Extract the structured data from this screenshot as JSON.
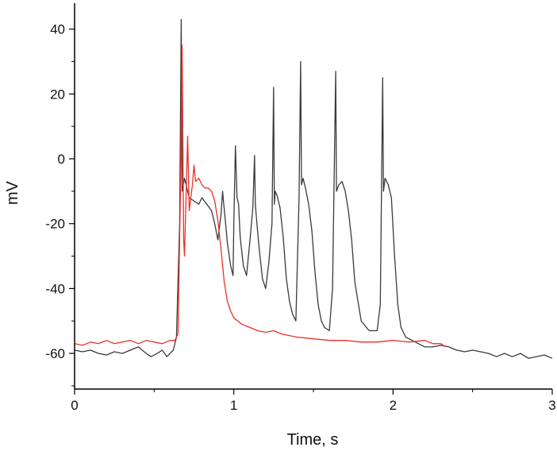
{
  "chart_data": {
    "type": "line",
    "title": "",
    "xlabel": "Time, s",
    "ylabel": "mV",
    "xlim": [
      0,
      3
    ],
    "ylim": [
      -71,
      48
    ],
    "x_ticks": [
      0,
      1,
      2,
      3
    ],
    "y_ticks": [
      40,
      20,
      0,
      -20,
      -40,
      -60
    ],
    "grid": false,
    "legend": "none",
    "series": [
      {
        "color": "#3a3a3a",
        "x": [
          0.0,
          0.05,
          0.1,
          0.15,
          0.2,
          0.25,
          0.3,
          0.35,
          0.4,
          0.45,
          0.48,
          0.52,
          0.55,
          0.58,
          0.6,
          0.62,
          0.64,
          0.66,
          0.67,
          0.675,
          0.69,
          0.7,
          0.72,
          0.75,
          0.78,
          0.8,
          0.83,
          0.86,
          0.88,
          0.9,
          0.92,
          0.93,
          0.935,
          0.945,
          0.96,
          0.98,
          0.995,
          1.0,
          1.01,
          1.02,
          1.03,
          1.04,
          1.06,
          1.08,
          1.1,
          1.12,
          1.13,
          1.135,
          1.145,
          1.16,
          1.18,
          1.2,
          1.22,
          1.24,
          1.25,
          1.255,
          1.26,
          1.27,
          1.29,
          1.31,
          1.33,
          1.35,
          1.37,
          1.39,
          1.41,
          1.42,
          1.425,
          1.435,
          1.45,
          1.47,
          1.49,
          1.51,
          1.53,
          1.55,
          1.57,
          1.6,
          1.62,
          1.64,
          1.645,
          1.66,
          1.68,
          1.7,
          1.72,
          1.74,
          1.76,
          1.8,
          1.85,
          1.9,
          1.92,
          1.935,
          1.94,
          1.95,
          1.97,
          1.99,
          2.01,
          2.03,
          2.05,
          2.08,
          2.12,
          2.16,
          2.2,
          2.25,
          2.3,
          2.35,
          2.4,
          2.45,
          2.5,
          2.55,
          2.6,
          2.65,
          2.7,
          2.75,
          2.8,
          2.85,
          2.9,
          2.95,
          3.0
        ],
        "y": [
          -59,
          -59.5,
          -59,
          -60,
          -60.5,
          -59.5,
          -60,
          -59,
          -58,
          -60,
          -61,
          -60,
          -59,
          -61,
          -60,
          -59,
          -55,
          -20,
          43,
          -10,
          -6,
          -8,
          -12,
          -13,
          -14,
          -12,
          -14,
          -16,
          -20,
          -25,
          -17,
          -10,
          -13,
          -18,
          -26,
          -33,
          -36,
          -20,
          4,
          -12,
          -14,
          -24,
          -33,
          -36,
          -26,
          -15,
          1,
          -14,
          -20,
          -28,
          -37,
          -40,
          -32,
          -20,
          22,
          -14,
          -10,
          -11,
          -15,
          -24,
          -37,
          -44,
          -48,
          -50,
          -12,
          30,
          -8,
          -6,
          -9,
          -14,
          -22,
          -35,
          -45,
          -50,
          -52,
          -53,
          -40,
          27,
          -10,
          -8,
          -7,
          -10,
          -16,
          -25,
          -38,
          -50,
          -53,
          -53,
          -45,
          25,
          -10,
          -6,
          -8,
          -12,
          -30,
          -45,
          -52,
          -55,
          -56,
          -57,
          -58,
          -58,
          -57.5,
          -58,
          -59,
          -59.5,
          -59,
          -59.5,
          -60,
          -61,
          -60,
          -61,
          -60,
          -61.5,
          -61,
          -60.5,
          -61.5
        ]
      },
      {
        "color": "#e8302a",
        "x": [
          0.0,
          0.05,
          0.1,
          0.15,
          0.2,
          0.25,
          0.3,
          0.35,
          0.4,
          0.45,
          0.5,
          0.55,
          0.6,
          0.63,
          0.65,
          0.665,
          0.675,
          0.685,
          0.69,
          0.7,
          0.71,
          0.72,
          0.73,
          0.74,
          0.75,
          0.76,
          0.78,
          0.8,
          0.82,
          0.84,
          0.86,
          0.88,
          0.9,
          0.92,
          0.94,
          0.96,
          0.98,
          1.0,
          1.05,
          1.1,
          1.15,
          1.2,
          1.25,
          1.3,
          1.4,
          1.5,
          1.6,
          1.7,
          1.8,
          1.9,
          2.0,
          2.1,
          2.2,
          2.25,
          2.3,
          2.33
        ],
        "y": [
          -57,
          -57.5,
          -56.5,
          -57,
          -56,
          -57,
          -56.5,
          -56,
          -57,
          -56,
          -56.5,
          -57,
          -56,
          -56,
          -54,
          -10,
          35,
          -25,
          -30,
          -12,
          7,
          -16,
          -12,
          -8,
          -2,
          -7,
          -6,
          -8,
          -9,
          -9,
          -10,
          -13,
          -19,
          -28,
          -38,
          -44,
          -47,
          -49,
          -51,
          -52,
          -53,
          -53.5,
          -53,
          -54,
          -55,
          -55.5,
          -56,
          -56,
          -56.5,
          -56.5,
          -56,
          -56.5,
          -56,
          -57,
          -57,
          -58
        ]
      }
    ]
  }
}
